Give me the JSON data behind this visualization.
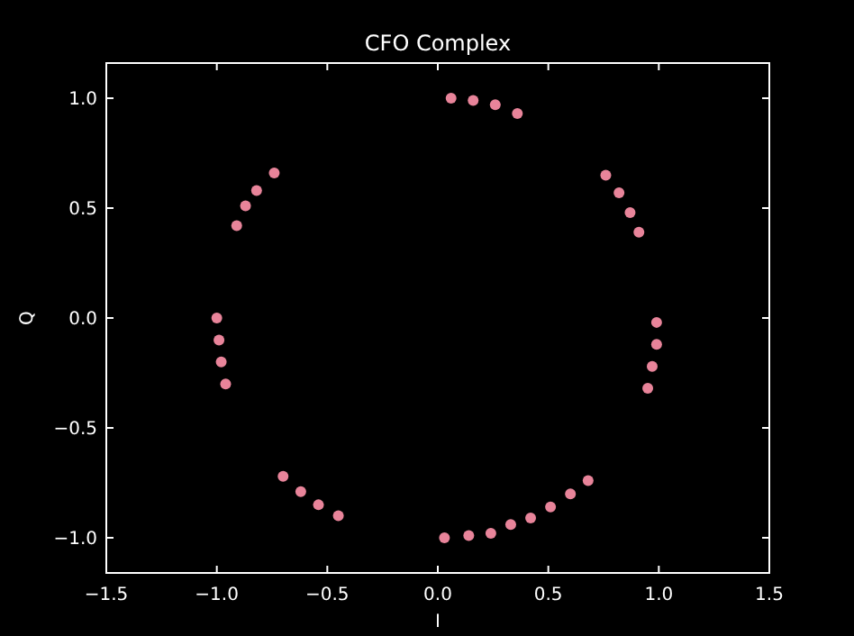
{
  "chart_data": {
    "type": "scatter",
    "title": "CFO Complex",
    "xlabel": "I",
    "ylabel": "Q",
    "xlim": [
      -1.5,
      1.5
    ],
    "ylim": [
      -1.16,
      1.16
    ],
    "xticks": [
      {
        "value": -1.5,
        "label": "−1.5"
      },
      {
        "value": -1,
        "label": "−1.0"
      },
      {
        "value": -0.5,
        "label": "−0.5"
      },
      {
        "value": 0,
        "label": "0.0"
      },
      {
        "value": 0.5,
        "label": "0.5"
      },
      {
        "value": 1,
        "label": "1.0"
      },
      {
        "value": 1.5,
        "label": "1.5"
      }
    ],
    "yticks": [
      {
        "value": -1,
        "label": "−1.0"
      },
      {
        "value": -0.5,
        "label": "−0.5"
      },
      {
        "value": 0,
        "label": "0.0"
      },
      {
        "value": 0.5,
        "label": "0.5"
      },
      {
        "value": 1,
        "label": "1.0"
      }
    ],
    "grid": false,
    "marker": "circle",
    "series": [
      {
        "color": "#e8849a",
        "x": [
          0.06,
          0.16,
          0.26,
          0.36,
          -0.74,
          -0.82,
          -0.87,
          -0.91,
          0.76,
          0.82,
          0.87,
          0.91,
          -1.0,
          -0.99,
          -0.98,
          -0.96,
          0.99,
          0.99,
          0.97,
          0.95,
          -0.7,
          -0.62,
          -0.54,
          -0.45,
          0.03,
          0.14,
          0.24,
          0.33,
          0.42,
          0.51,
          0.6,
          0.68
        ],
        "values": [
          1.0,
          0.99,
          0.97,
          0.93,
          0.66,
          0.58,
          0.51,
          0.42,
          0.65,
          0.57,
          0.48,
          0.39,
          0.0,
          -0.1,
          -0.2,
          -0.3,
          -0.02,
          -0.12,
          -0.22,
          -0.32,
          -0.72,
          -0.79,
          -0.85,
          -0.9,
          -1.0,
          -0.99,
          -0.98,
          -0.94,
          -0.91,
          -0.86,
          -0.8,
          -0.74
        ]
      }
    ]
  }
}
